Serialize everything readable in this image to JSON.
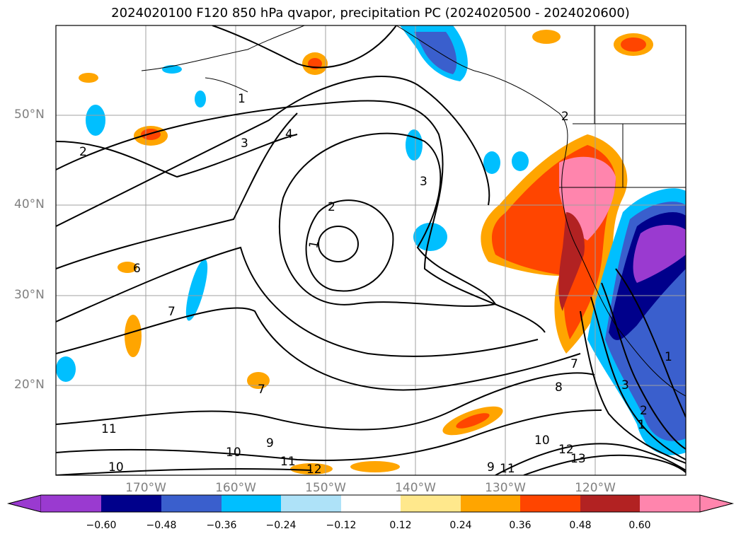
{
  "title": "2024020100 F120 850 hPa qvapor, precipitation PC (2024020500 - 2024020600)",
  "lat_labels": [
    "50°N",
    "40°N",
    "30°N",
    "20°N"
  ],
  "lon_labels": [
    "170°W",
    "160°W",
    "150°W",
    "140°W",
    "130°W",
    "120°W"
  ],
  "colorbar": {
    "ticks": [
      "−0.60",
      "−0.48",
      "−0.36",
      "−0.24",
      "−0.12",
      "0.12",
      "0.24",
      "0.36",
      "0.48",
      "0.60"
    ],
    "colors": [
      "#9a3ad0",
      "#00008b",
      "#3a5fcd",
      "#00bfff",
      "#aee2f8",
      "#ffffff",
      "#ffe88c",
      "#ffa500",
      "#ff4500",
      "#b22222",
      "#ff85ad"
    ],
    "extend": "both"
  },
  "contour_labels": [
    "1",
    "2",
    "3",
    "4",
    "1",
    "2",
    "3",
    "6",
    "7",
    "7",
    "7",
    "8",
    "9",
    "10",
    "10",
    "11",
    "11",
    "12",
    "12",
    "13",
    "1",
    "2",
    "3",
    "9",
    "10",
    "11",
    "1",
    "2"
  ],
  "map": {
    "lon_range": [
      -180,
      -110
    ],
    "lat_range": [
      10,
      60
    ],
    "gridlines": true,
    "coastlines": true,
    "field_contours": "850 hPa qvapor",
    "shading": "precipitation PC"
  }
}
